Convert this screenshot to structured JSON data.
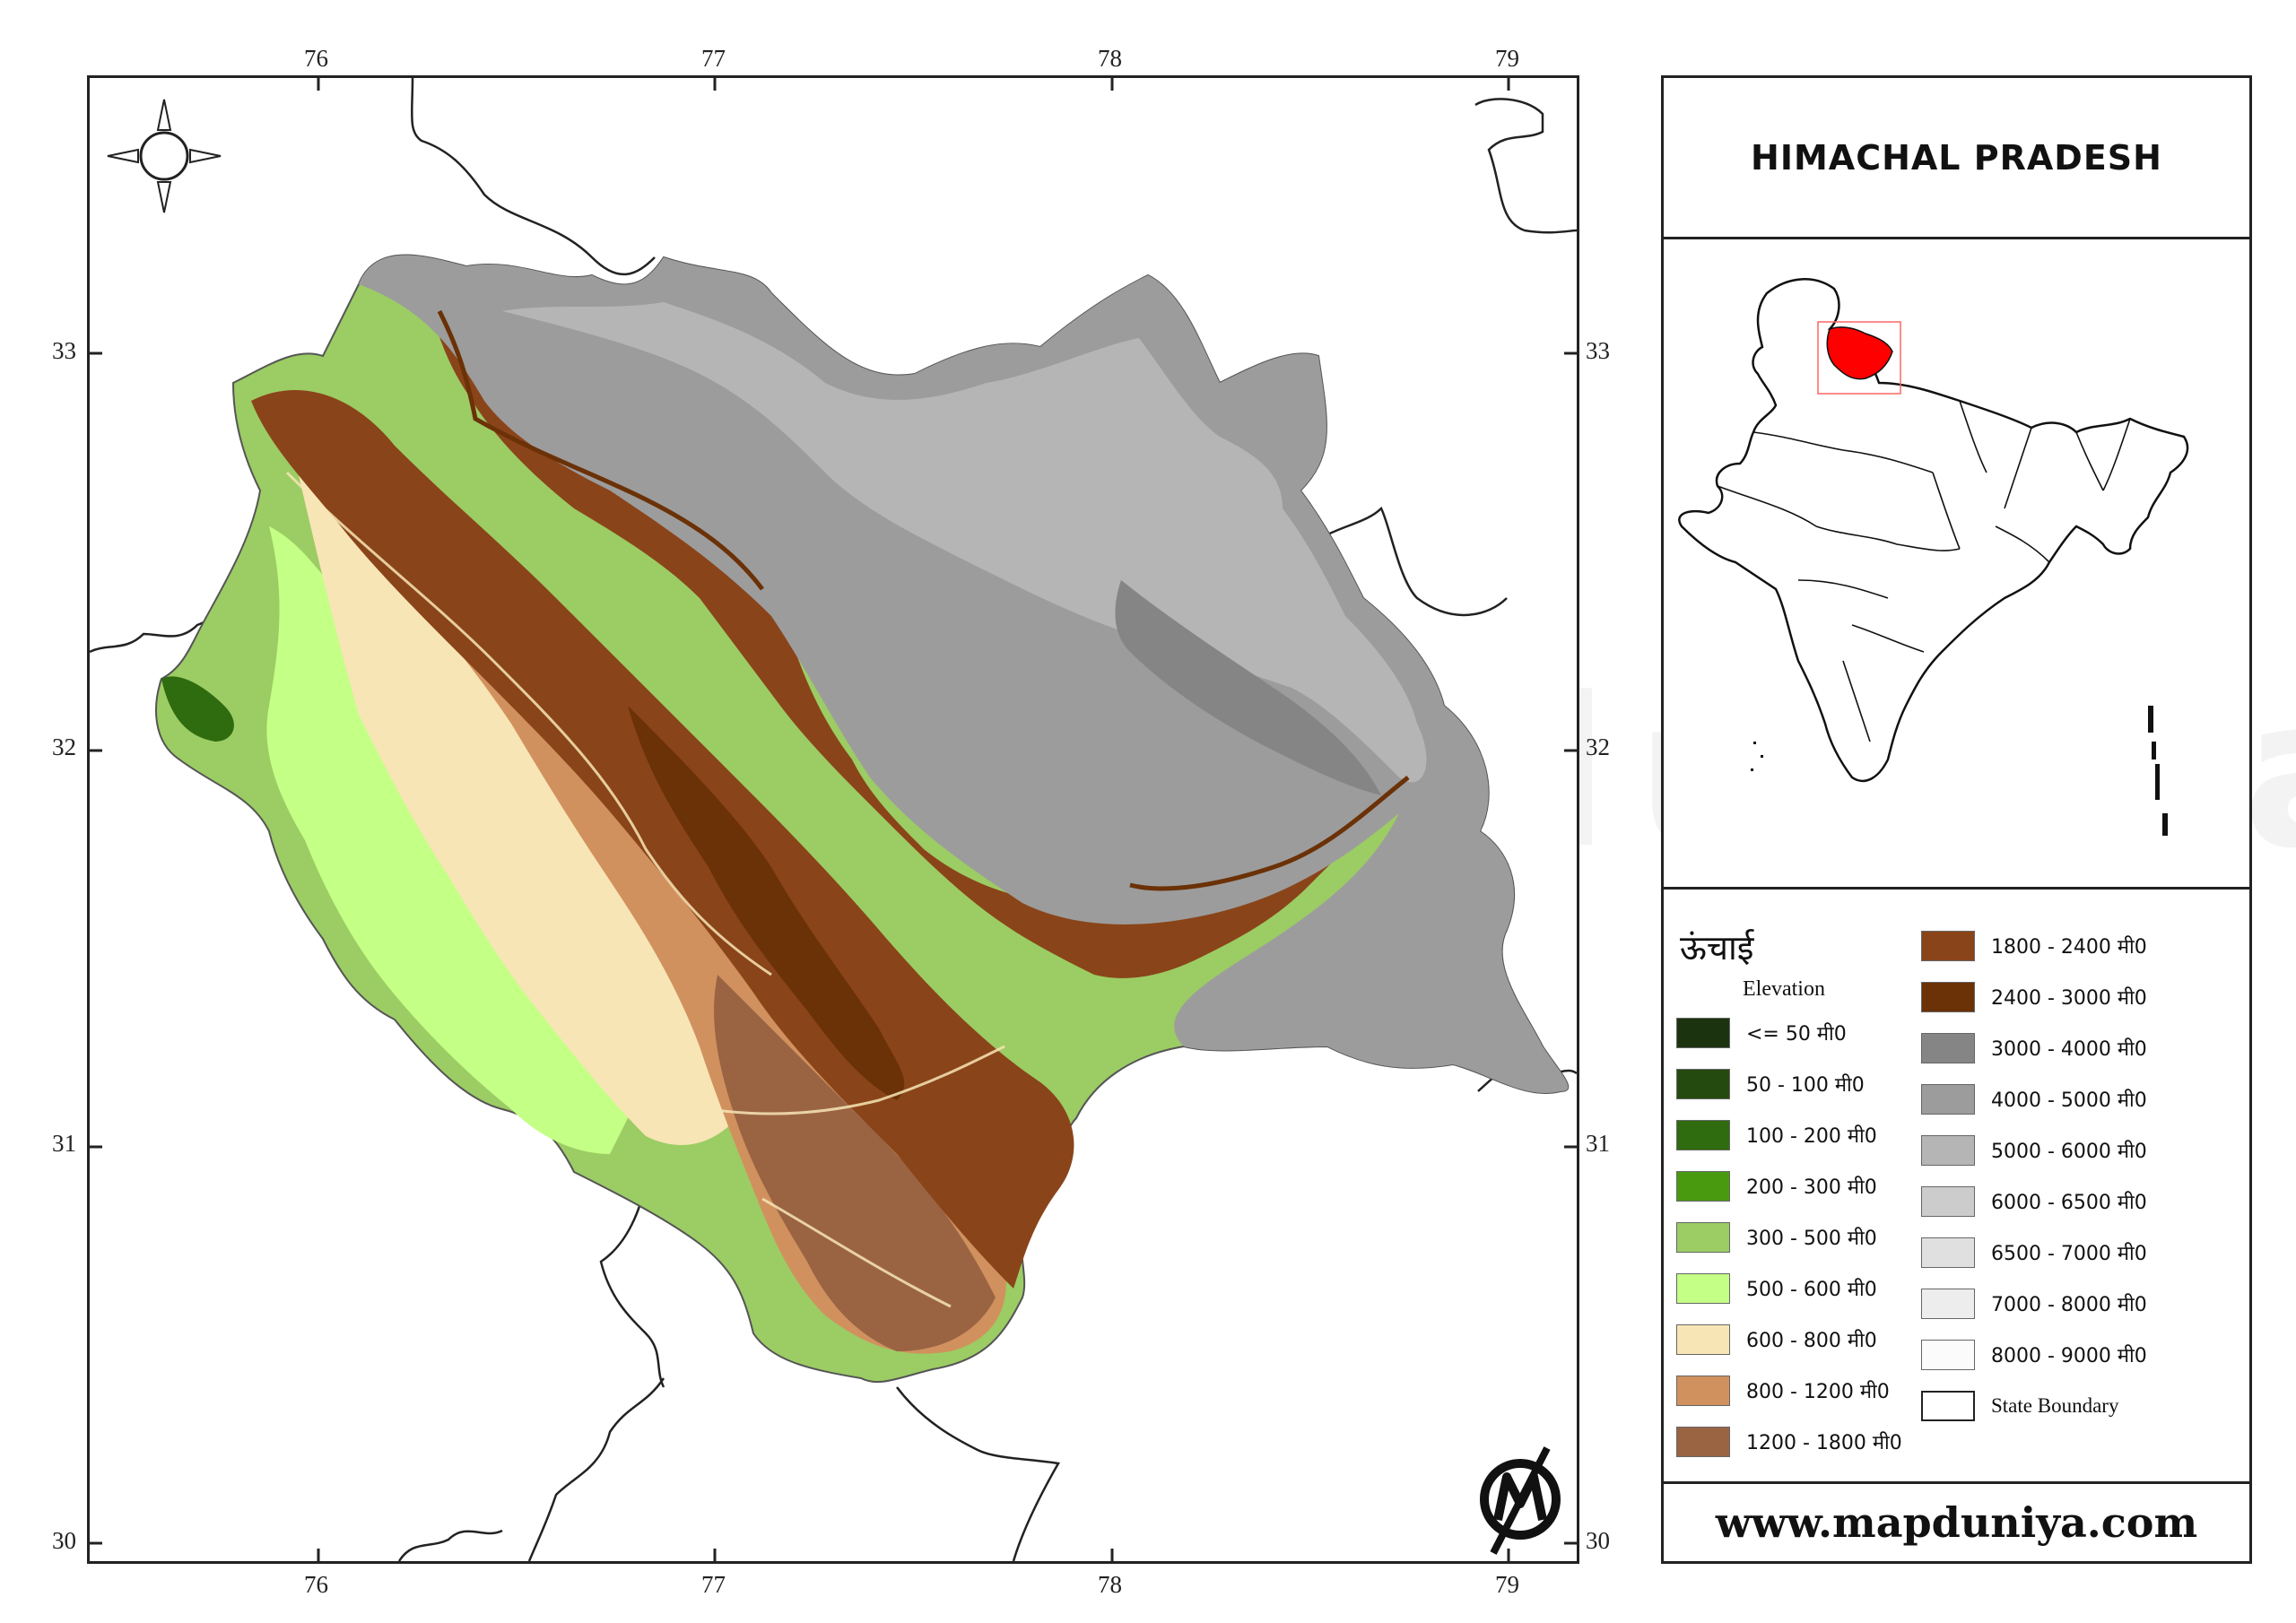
{
  "title": "HIMACHAL PRADESH",
  "website": "www.mapduniya.com",
  "watermark": "www.mapduniya.com",
  "map": {
    "longitude_ticks": [
      "76",
      "77",
      "78",
      "79"
    ],
    "latitude_ticks": [
      "33",
      "32",
      "31",
      "30"
    ],
    "compass_icon": "compass-rose-icon",
    "logo_icon": "mapduniya-logo-icon",
    "highlight_color": "#ff0000"
  },
  "legend": {
    "title": "ऊंचाई",
    "subtitle": "Elevation",
    "items": [
      {
        "label": "<= 50 मी0",
        "color": "#1c3310"
      },
      {
        "label": "50 - 100 मी0",
        "color": "#254a0f"
      },
      {
        "label": "100 - 200 मी0",
        "color": "#2f6b0f"
      },
      {
        "label": "200 - 300 मी0",
        "color": "#4a9a10"
      },
      {
        "label": "300 - 500 मी0",
        "color": "#9ccc64"
      },
      {
        "label": "500 - 600 मी0",
        "color": "#c4ff86"
      },
      {
        "label": "600 - 800 मी0",
        "color": "#f7e5b5"
      },
      {
        "label": "800 - 1200 मी0",
        "color": "#d1915e"
      },
      {
        "label": "1200 - 1800 मी0",
        "color": "#9a6443"
      },
      {
        "label": "1800 - 2400 मी0",
        "color": "#8a4419"
      },
      {
        "label": "2400 - 3000 मी0",
        "color": "#6b3107"
      },
      {
        "label": "3000 - 4000 मी0",
        "color": "#858585"
      },
      {
        "label": "4000 - 5000 मी0",
        "color": "#9c9c9c"
      },
      {
        "label": "5000 - 6000 मी0",
        "color": "#b5b5b5"
      },
      {
        "label": "6000 - 6500 मी0",
        "color": "#cccccc"
      },
      {
        "label": "6500 - 7000 मी0",
        "color": "#e0e0e0"
      },
      {
        "label": "7000 - 8000 मी0",
        "color": "#ededed"
      },
      {
        "label": "8000 - 9000 मी0",
        "color": "#fbfbfb"
      },
      {
        "label": "State Boundary",
        "color": "#ffffff"
      }
    ]
  }
}
